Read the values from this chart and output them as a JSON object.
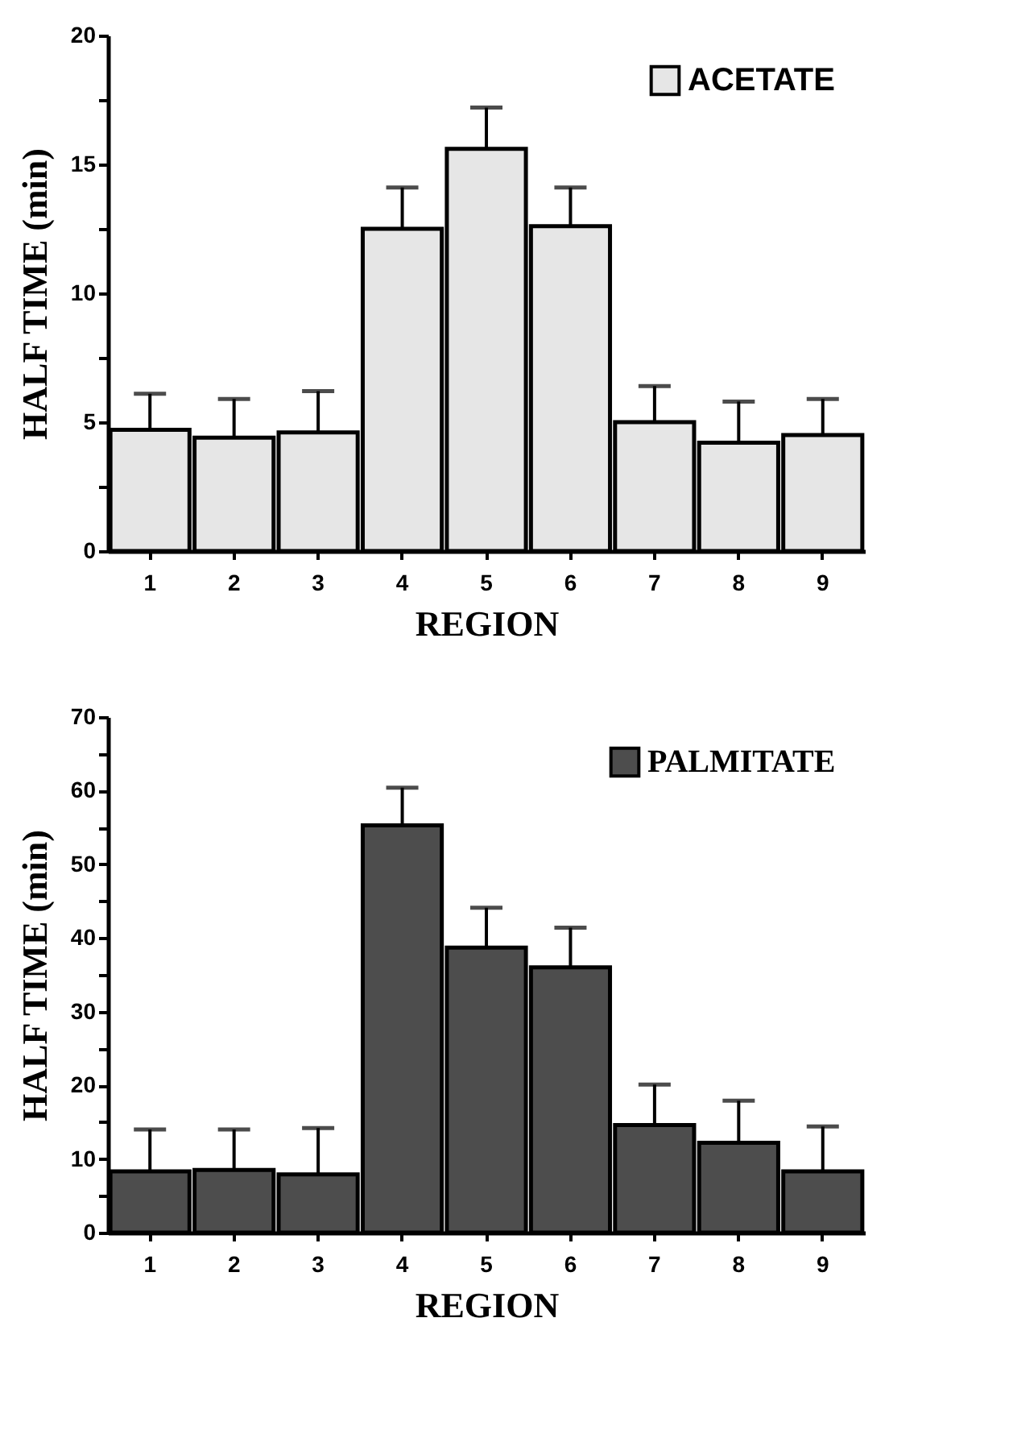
{
  "chart_data": [
    {
      "type": "bar",
      "xlabel": "REGION",
      "ylabel": "HALF TIME (min)",
      "categories": [
        "1",
        "2",
        "3",
        "4",
        "5",
        "6",
        "7",
        "8",
        "9"
      ],
      "series": [
        {
          "name": "ACETATE",
          "color": "#e6e6e6",
          "values": [
            4.7,
            4.4,
            4.6,
            12.5,
            15.6,
            12.6,
            5.0,
            4.2,
            4.5
          ],
          "errors": [
            [
              4.7,
              6.1
            ],
            [
              4.4,
              5.9
            ],
            [
              4.6,
              6.2
            ],
            [
              12.5,
              14.1
            ],
            [
              15.6,
              17.2
            ],
            [
              12.6,
              14.1
            ],
            [
              5.0,
              6.4
            ],
            [
              4.2,
              5.8
            ],
            [
              4.5,
              5.9
            ]
          ]
        }
      ],
      "ylim": [
        0,
        20
      ],
      "yticks": [
        0,
        {
          "value": 2.5,
          "label": null
        },
        5,
        {
          "value": 7.5,
          "label": null
        },
        10,
        {
          "value": 12.5,
          "label": null
        },
        15,
        {
          "value": 17.5,
          "label": null
        },
        20
      ],
      "grid": false,
      "legend": "top right"
    },
    {
      "type": "bar",
      "xlabel": "REGION",
      "ylabel": "HALF TIME (min)",
      "categories": [
        "1",
        "2",
        "3",
        "4",
        "5",
        "6",
        "7",
        "8",
        "9"
      ],
      "series": [
        {
          "name": "PALMITATE",
          "color": "#4d4d4d",
          "values": [
            8.3,
            8.5,
            7.9,
            55.3,
            38.7,
            36.0,
            14.6,
            12.2,
            8.3
          ],
          "errors": [
            [
              8.3,
              14.0
            ],
            [
              8.5,
              14.0
            ],
            [
              7.9,
              14.2
            ],
            [
              55.3,
              60.4
            ],
            [
              38.7,
              44.1
            ],
            [
              36.0,
              41.4
            ],
            [
              14.6,
              20.1
            ],
            [
              12.2,
              17.9
            ],
            [
              8.3,
              14.4
            ]
          ]
        }
      ],
      "ylim": [
        0,
        70
      ],
      "yticks": [
        0,
        {
          "value": 5,
          "label": null
        },
        10,
        {
          "value": 15,
          "label": null
        },
        20,
        {
          "value": 25,
          "label": null
        },
        30,
        {
          "value": 35,
          "label": null
        },
        40,
        {
          "value": 45,
          "label": null
        },
        50,
        {
          "value": 55,
          "label": null
        },
        60,
        {
          "value": 65,
          "label": null
        },
        70
      ],
      "grid": false,
      "legend": "top right"
    }
  ]
}
